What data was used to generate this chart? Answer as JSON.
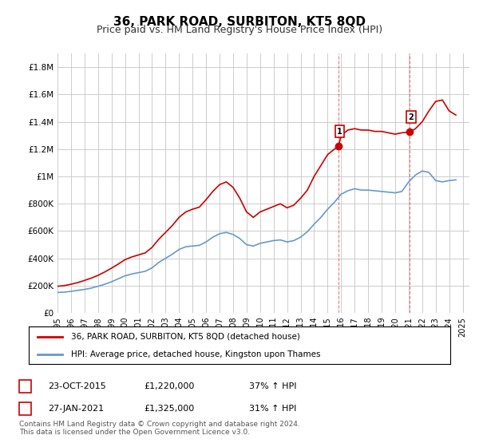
{
  "title": "36, PARK ROAD, SURBITON, KT5 8QD",
  "subtitle": "Price paid vs. HM Land Registry's House Price Index (HPI)",
  "ylabel_ticks": [
    "£0",
    "£200K",
    "£400K",
    "£600K",
    "£800K",
    "£1M",
    "£1.2M",
    "£1.4M",
    "£1.6M",
    "£1.8M"
  ],
  "ytick_values": [
    0,
    200000,
    400000,
    600000,
    800000,
    1000000,
    1200000,
    1400000,
    1600000,
    1800000
  ],
  "ylim": [
    0,
    1900000
  ],
  "xlim_start": 1995.0,
  "xlim_end": 2025.5,
  "legend_line1": "36, PARK ROAD, SURBITON, KT5 8QD (detached house)",
  "legend_line2": "HPI: Average price, detached house, Kingston upon Thames",
  "point1_label": "1",
  "point1_date": "23-OCT-2015",
  "point1_price": "£1,220,000",
  "point1_hpi": "37% ↑ HPI",
  "point1_x": 2015.8,
  "point1_y": 1220000,
  "point2_label": "2",
  "point2_date": "27-JAN-2021",
  "point2_price": "£1,325,000",
  "point2_hpi": "31% ↑ HPI",
  "point2_x": 2021.07,
  "point2_y": 1325000,
  "footer": "Contains HM Land Registry data © Crown copyright and database right 2024.\nThis data is licensed under the Open Government Licence v3.0.",
  "red_color": "#CC0000",
  "blue_color": "#6699CC",
  "bg_color": "#FFFFFF",
  "grid_color": "#CCCCCC",
  "title_fontsize": 11,
  "subtitle_fontsize": 9,
  "hpi_x": [
    1995.0,
    1995.5,
    1996.0,
    1996.5,
    1997.0,
    1997.5,
    1998.0,
    1998.5,
    1999.0,
    1999.5,
    2000.0,
    2000.5,
    2001.0,
    2001.5,
    2002.0,
    2002.5,
    2003.0,
    2003.5,
    2004.0,
    2004.5,
    2005.0,
    2005.5,
    2006.0,
    2006.5,
    2007.0,
    2007.5,
    2008.0,
    2008.5,
    2009.0,
    2009.5,
    2010.0,
    2010.5,
    2011.0,
    2011.5,
    2012.0,
    2012.5,
    2013.0,
    2013.5,
    2014.0,
    2014.5,
    2015.0,
    2015.5,
    2016.0,
    2016.5,
    2017.0,
    2017.5,
    2018.0,
    2018.5,
    2019.0,
    2019.5,
    2020.0,
    2020.5,
    2021.0,
    2021.5,
    2022.0,
    2022.5,
    2023.0,
    2023.5,
    2024.0,
    2024.5
  ],
  "hpi_y": [
    150000,
    152000,
    158000,
    165000,
    172000,
    182000,
    195000,
    210000,
    228000,
    250000,
    272000,
    285000,
    295000,
    305000,
    330000,
    370000,
    400000,
    430000,
    465000,
    485000,
    490000,
    495000,
    520000,
    555000,
    580000,
    590000,
    575000,
    545000,
    500000,
    490000,
    510000,
    520000,
    530000,
    535000,
    520000,
    530000,
    555000,
    595000,
    650000,
    700000,
    760000,
    810000,
    870000,
    895000,
    910000,
    900000,
    900000,
    895000,
    890000,
    885000,
    880000,
    890000,
    960000,
    1010000,
    1040000,
    1030000,
    970000,
    960000,
    970000,
    975000
  ],
  "red_x": [
    1995.0,
    1995.5,
    1996.0,
    1996.5,
    1997.0,
    1997.5,
    1998.0,
    1998.5,
    1999.0,
    1999.5,
    2000.0,
    2000.5,
    2001.0,
    2001.5,
    2002.0,
    2002.5,
    2003.0,
    2003.5,
    2004.0,
    2004.5,
    2005.0,
    2005.5,
    2006.0,
    2006.5,
    2007.0,
    2007.5,
    2008.0,
    2008.5,
    2009.0,
    2009.5,
    2010.0,
    2010.5,
    2011.0,
    2011.5,
    2012.0,
    2012.5,
    2013.0,
    2013.5,
    2014.0,
    2014.5,
    2015.0,
    2015.5,
    2015.8,
    2016.0,
    2016.5,
    2017.0,
    2017.5,
    2018.0,
    2018.5,
    2019.0,
    2019.5,
    2020.0,
    2020.5,
    2021.07,
    2021.5,
    2022.0,
    2022.5,
    2023.0,
    2023.5,
    2024.0,
    2024.5
  ],
  "red_y": [
    195000,
    200000,
    210000,
    222000,
    238000,
    255000,
    275000,
    300000,
    328000,
    358000,
    390000,
    410000,
    425000,
    440000,
    480000,
    540000,
    590000,
    640000,
    700000,
    740000,
    760000,
    775000,
    830000,
    890000,
    940000,
    960000,
    920000,
    840000,
    740000,
    700000,
    740000,
    760000,
    780000,
    800000,
    770000,
    790000,
    840000,
    900000,
    1000000,
    1080000,
    1160000,
    1200000,
    1220000,
    1300000,
    1340000,
    1350000,
    1340000,
    1340000,
    1330000,
    1330000,
    1320000,
    1310000,
    1320000,
    1325000,
    1350000,
    1400000,
    1480000,
    1550000,
    1560000,
    1480000,
    1450000
  ]
}
